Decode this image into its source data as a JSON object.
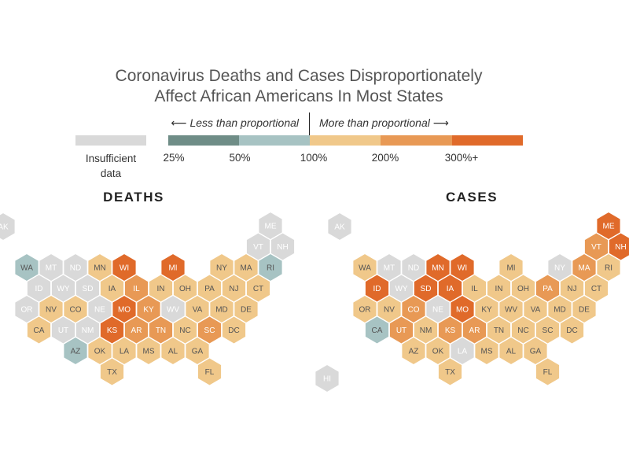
{
  "title": {
    "line1": "Coronavirus Deaths and Cases Disproportionately",
    "line2": "Affect African Americans In Most States"
  },
  "legend": {
    "less_label": "⟵ Less than proportional",
    "more_label": "More than proportional ⟶",
    "insufficient_label": "Insufficient data",
    "insufficient_color": "#d9d9d9",
    "ticks": [
      "25%",
      "50%",
      "100%",
      "200%",
      "300%+"
    ],
    "bins": [
      {
        "id": "b25",
        "color": "#6f8d87"
      },
      {
        "id": "b50",
        "color": "#a7c3c3"
      },
      {
        "id": "b100",
        "color": "#f0c88a"
      },
      {
        "id": "b200",
        "color": "#e89955"
      },
      {
        "id": "b300",
        "color": "#e06a2a"
      }
    ]
  },
  "chart_data": [
    {
      "type": "hex-map",
      "title": "DEATHS",
      "values": {
        "AK": "na",
        "ME": "na",
        "VT": "na",
        "NH": "na",
        "WA": "b50",
        "MT": "na",
        "ND": "na",
        "MN": "b100",
        "WI": "b300",
        "MI": "b300",
        "NY": "b100",
        "MA": "b100",
        "RI": "b50",
        "ID": "na",
        "WY": "na",
        "SD": "na",
        "IA": "b100",
        "IL": "b200",
        "IN": "b100",
        "OH": "b100",
        "PA": "b100",
        "NJ": "b100",
        "CT": "b100",
        "OR": "na",
        "NV": "b100",
        "CO": "b100",
        "NE": "na",
        "MO": "b300",
        "KY": "b200",
        "WV": "na",
        "VA": "b100",
        "MD": "b100",
        "DE": "b100",
        "CA": "b100",
        "UT": "na",
        "NM": "na",
        "KS": "b300",
        "AR": "b200",
        "TN": "b200",
        "NC": "b100",
        "SC": "b200",
        "DC": "b100",
        "AZ": "b50",
        "OK": "b100",
        "LA": "b100",
        "MS": "b100",
        "AL": "b100",
        "GA": "b100",
        "TX": "b100",
        "FL": "b100"
      }
    },
    {
      "type": "hex-map",
      "title": "CASES",
      "values": {
        "AK": "na",
        "ME": "b300",
        "VT": "b200",
        "NH": "b300",
        "WA": "b100",
        "MT": "na",
        "ND": "na",
        "MN": "b300",
        "WI": "b300",
        "MI": "b100",
        "NY": "na",
        "MA": "b200",
        "RI": "b100",
        "ID": "b300",
        "WY": "na",
        "SD": "b300",
        "IA": "b300",
        "IL": "b100",
        "IN": "b100",
        "OH": "b100",
        "PA": "b200",
        "NJ": "b100",
        "CT": "b100",
        "OR": "b100",
        "NV": "b100",
        "CO": "b200",
        "NE": "na",
        "MO": "b300",
        "KY": "b100",
        "WV": "b100",
        "VA": "b100",
        "MD": "b100",
        "DE": "b100",
        "CA": "b50",
        "UT": "b200",
        "NM": "b100",
        "KS": "b200",
        "AR": "b200",
        "TN": "b100",
        "NC": "b100",
        "SC": "b100",
        "DC": "b100",
        "AZ": "b100",
        "OK": "b100",
        "LA": "na",
        "MS": "b100",
        "AL": "b100",
        "GA": "b100",
        "TX": "b100",
        "FL": "b100",
        "HI": "na"
      }
    }
  ]
}
